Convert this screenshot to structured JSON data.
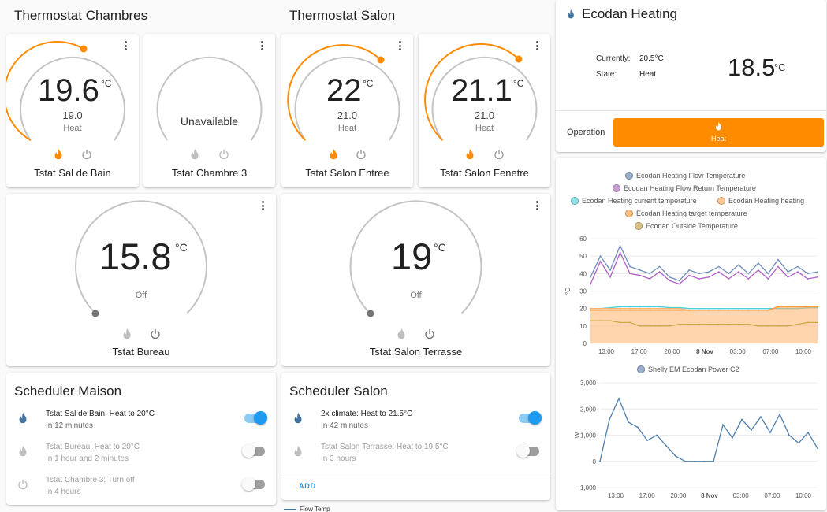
{
  "columns": {
    "chambres_title": "Thermostat Chambres",
    "salon_title": "Thermostat Salon"
  },
  "thermostats": {
    "sal_de_bain": {
      "name": "Tstat Sal de Bain",
      "current": "19.6",
      "unit": "°C",
      "target": "19.0",
      "mode": "Heat",
      "state": "heat"
    },
    "chambre3": {
      "name": "Tstat Chambre 3",
      "status": "Unavailable",
      "state": "unavailable"
    },
    "salon_entree": {
      "name": "Tstat Salon Entree",
      "current": "22",
      "unit": "°C",
      "target": "21.0",
      "mode": "Heat",
      "state": "heat"
    },
    "salon_fenetre": {
      "name": "Tstat Salon Fenetre",
      "current": "21.1",
      "unit": "°C",
      "target": "21.0",
      "mode": "Heat",
      "state": "heat"
    },
    "bureau": {
      "name": "Tstat Bureau",
      "current": "15.8",
      "unit": "°C",
      "mode": "Off",
      "state": "off"
    },
    "salon_terrasse": {
      "name": "Tstat Salon Terrasse",
      "current": "19",
      "unit": "°C",
      "mode": "Off",
      "state": "off"
    }
  },
  "scheduler_maison": {
    "title": "Scheduler Maison",
    "items": [
      {
        "line1": "Tstat Sal de Bain: Heat to 20°C",
        "line2": "In 12 minutes",
        "enabled": true
      },
      {
        "line1": "Tstat Bureau: Heat to 20°C",
        "line2": "In 1 hour and 2 minutes",
        "enabled": false
      },
      {
        "line1": "Tstat Chambre 3: Turn off",
        "line2": "In 4 hours",
        "enabled": false
      }
    ]
  },
  "scheduler_salon": {
    "title": "Scheduler Salon",
    "items": [
      {
        "line1": "2x climate: Heat to 21.5°C",
        "line2": "In 42 minutes",
        "enabled": true
      },
      {
        "line1": "Tstat Salon Terrasse: Heat to 19.5°C",
        "line2": "In 3 hours",
        "enabled": false
      }
    ],
    "add_label": "ADD"
  },
  "partial_chart": {
    "legend": "Flow Temp"
  },
  "ecodan": {
    "title": "Ecodan Heating",
    "currently_label": "Currently:",
    "currently_value": "20.5°C",
    "state_label": "State:",
    "state_value": "Heat",
    "target": "18.5",
    "unit": "°C",
    "operation_label": "Operation",
    "operation_button": "Heat"
  },
  "colors": {
    "accent": "#ff8c00",
    "flow_temp": "#6f8fb8",
    "flow_return": "#b05fc4",
    "current_temp": "#4fd1d9",
    "heating": "#ffb26b",
    "target_temp": "#ff9a3c",
    "outside_temp": "#c8a848",
    "power": "#4f7fac",
    "toggle_on": "#1e9bf0"
  },
  "icons": {
    "heat": "flame-icon",
    "off": "power-icon",
    "menu": "more-vert-icon"
  },
  "chart_data": [
    {
      "type": "line",
      "title": "",
      "xlabel": "",
      "ylabel": "°C",
      "ylim": [
        0,
        60
      ],
      "yticks": [
        "0",
        "10",
        "20",
        "30",
        "40",
        "50",
        "60"
      ],
      "xticks": [
        "13:00",
        "17:00",
        "20:00",
        "8 Nov",
        "03:00",
        "07:00",
        "10:00"
      ],
      "x": [
        "12:00",
        "13:00",
        "14:00",
        "15:00",
        "16:00",
        "17:00",
        "18:00",
        "19:00",
        "20:00",
        "21:00",
        "22:00",
        "23:00",
        "8 Nov",
        "01:00",
        "02:00",
        "03:00",
        "04:00",
        "05:00",
        "06:00",
        "07:00",
        "08:00",
        "09:00",
        "10:00",
        "11:00"
      ],
      "series": [
        {
          "name": "Ecodan Heating Flow Temperature",
          "values": [
            38,
            50,
            42,
            56,
            44,
            42,
            40,
            44,
            38,
            36,
            42,
            40,
            41,
            44,
            40,
            45,
            40,
            46,
            40,
            48,
            41,
            44,
            40,
            41
          ]
        },
        {
          "name": "Ecodan Heating Flow Return Temperature",
          "values": [
            34,
            47,
            38,
            52,
            40,
            39,
            37,
            41,
            36,
            34,
            39,
            37,
            38,
            41,
            37,
            41,
            37,
            42,
            37,
            44,
            38,
            41,
            37,
            38
          ]
        },
        {
          "name": "Ecodan Heating current temperature",
          "values": [
            20,
            20,
            20.5,
            21,
            21,
            21,
            21,
            21,
            20.5,
            20.5,
            20,
            20,
            20,
            20,
            20,
            20,
            20,
            20,
            20,
            20,
            20,
            20,
            20.5,
            20.5
          ]
        },
        {
          "name": "Ecodan Heating heating",
          "values": [
            20,
            20,
            20,
            20,
            20,
            20,
            20,
            20,
            20,
            20,
            19,
            19,
            19,
            19,
            19,
            19,
            19,
            19,
            19,
            21,
            21,
            21,
            21,
            21
          ]
        },
        {
          "name": "Ecodan Heating target temperature",
          "values": [
            19,
            19,
            19,
            19,
            19,
            19,
            19,
            19,
            19,
            19,
            19,
            19,
            19,
            19,
            19,
            19,
            19,
            19,
            19,
            21,
            21,
            21,
            21,
            21
          ]
        },
        {
          "name": "Ecodan Outside Temperature",
          "values": [
            13,
            13,
            13,
            12,
            12,
            10,
            10,
            10,
            10,
            11,
            11,
            11,
            11,
            11,
            11,
            11,
            11,
            10,
            10,
            10,
            10,
            11,
            12,
            12
          ]
        }
      ]
    },
    {
      "type": "line",
      "title": "",
      "xlabel": "",
      "ylabel": "W",
      "ylim": [
        -1000,
        3000
      ],
      "yticks": [
        "-1,000",
        "0",
        "1,000",
        "2,000",
        "3,000"
      ],
      "xticks": [
        "13:00",
        "17:00",
        "20:00",
        "8 Nov",
        "03:00",
        "07:00",
        "10:00"
      ],
      "x": [
        "12:00",
        "13:00",
        "14:00",
        "15:00",
        "16:00",
        "17:00",
        "18:00",
        "19:00",
        "20:00",
        "21:00",
        "22:00",
        "23:00",
        "8 Nov",
        "01:00",
        "02:00",
        "03:00",
        "04:00",
        "05:00",
        "06:00",
        "07:00",
        "08:00",
        "09:00",
        "10:00",
        "11:00"
      ],
      "series": [
        {
          "name": "Shelly EM Ecodan Power C2",
          "values": [
            0,
            1600,
            2400,
            1500,
            1300,
            800,
            1000,
            600,
            200,
            0,
            0,
            0,
            0,
            1400,
            900,
            1600,
            1200,
            1700,
            1100,
            1800,
            1000,
            700,
            1100,
            500
          ]
        }
      ]
    }
  ]
}
